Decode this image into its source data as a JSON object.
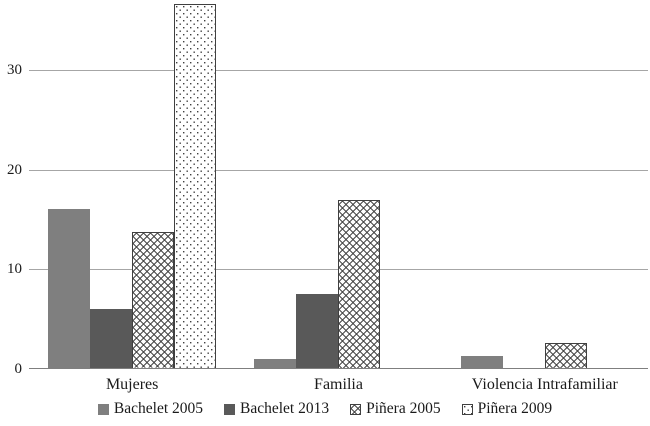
{
  "chart_data": {
    "type": "bar",
    "title": "",
    "xlabel": "",
    "ylabel": "",
    "categories": [
      "Mujeres",
      "Familia",
      "Violencia Intrafamiliar"
    ],
    "series": [
      {
        "name": "Bachelet 2005",
        "fill": "solid",
        "color": "#7f7f7f",
        "pattern_color": "#7f7f7f",
        "values": [
          16,
          1,
          1.3
        ]
      },
      {
        "name": "Bachelet 2013",
        "fill": "solid",
        "color": "#595959",
        "pattern_color": "#595959",
        "values": [
          6,
          7.5,
          0
        ]
      },
      {
        "name": "Piñera 2005",
        "fill": "crosshatch",
        "color": "#ffffff",
        "pattern_color": "#3f3f3f",
        "values": [
          13.7,
          17,
          2.6
        ]
      },
      {
        "name": "Piñera 2009",
        "fill": "dots",
        "color": "#ffffff",
        "pattern_color": "#3f3f3f",
        "values": [
          36.6,
          0,
          0
        ]
      }
    ],
    "yticks": [
      0,
      10,
      20,
      30
    ],
    "ylim": [
      0,
      37
    ],
    "grid": true,
    "legend_position": "bottom",
    "colors": {
      "gridline": "#a6a6a6",
      "axis_line": "#7f7f7f",
      "text": "#1a1a1a",
      "pattern_border": "#404040",
      "background": "#ffffff"
    }
  }
}
